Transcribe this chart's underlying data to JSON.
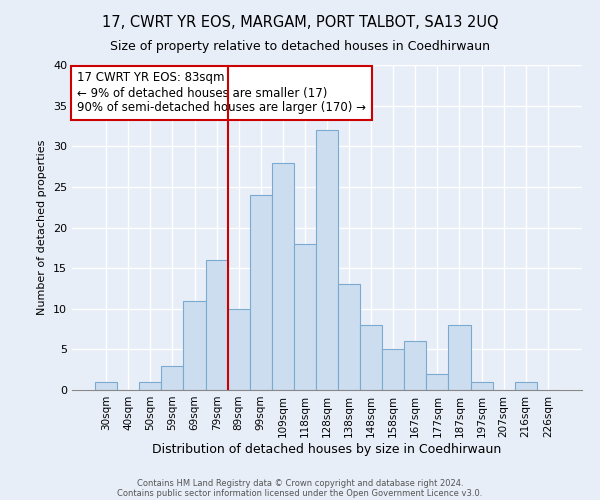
{
  "title": "17, CWRT YR EOS, MARGAM, PORT TALBOT, SA13 2UQ",
  "subtitle": "Size of property relative to detached houses in Coedhirwaun",
  "xlabel": "Distribution of detached houses by size in Coedhirwaun",
  "ylabel": "Number of detached properties",
  "bar_labels": [
    "30sqm",
    "40sqm",
    "50sqm",
    "59sqm",
    "69sqm",
    "79sqm",
    "89sqm",
    "99sqm",
    "109sqm",
    "118sqm",
    "128sqm",
    "138sqm",
    "148sqm",
    "158sqm",
    "167sqm",
    "177sqm",
    "187sqm",
    "197sqm",
    "207sqm",
    "216sqm",
    "226sqm"
  ],
  "bar_values": [
    1,
    0,
    1,
    3,
    11,
    16,
    10,
    24,
    28,
    18,
    32,
    13,
    8,
    5,
    6,
    2,
    8,
    1,
    0,
    1,
    0
  ],
  "bar_color": "#ccddf0",
  "bar_edge_color": "#7aaad0",
  "vline_x": 6.0,
  "vline_color": "#cc0000",
  "ylim": [
    0,
    40
  ],
  "yticks": [
    0,
    5,
    10,
    15,
    20,
    25,
    30,
    35,
    40
  ],
  "annotation_title": "17 CWRT YR EOS: 83sqm",
  "annotation_line1": "← 9% of detached houses are smaller (17)",
  "annotation_line2": "90% of semi-detached houses are larger (170) →",
  "annotation_box_color": "#ffffff",
  "annotation_box_edge": "#cc0000",
  "footer_line1": "Contains HM Land Registry data © Crown copyright and database right 2024.",
  "footer_line2": "Contains public sector information licensed under the Open Government Licence v3.0.",
  "background_color": "#e8eef8",
  "grid_color": "#ffffff"
}
